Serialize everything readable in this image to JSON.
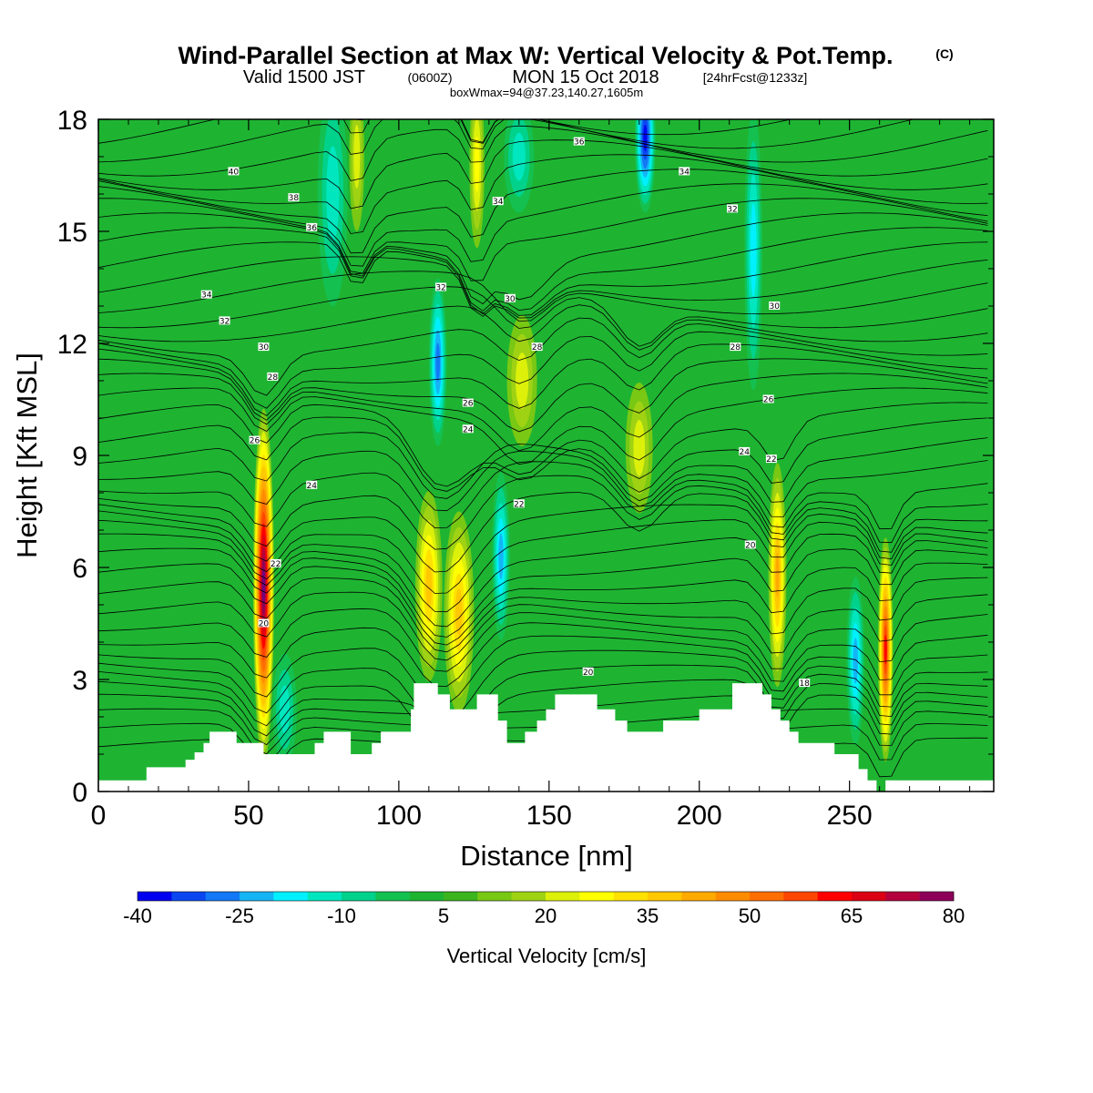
{
  "title": {
    "main": "Wind-Parallel Section at Max W: Vertical Velocity & Pot.Temp.",
    "copyright": "(C)",
    "valid_prefix": "Valid 1500 JST",
    "valid_utc": "(0600Z)",
    "valid_date": "MON 15 Oct 2018",
    "forecast": "[24hrFcst@1233z]",
    "box": "boxWmax=94@37.23,140.27,1605m"
  },
  "colors": {
    "terrain": "#ffffff",
    "contour": "#000000",
    "scale": [
      "#0000f0",
      "#0a46f0",
      "#1278f5",
      "#14b4f5",
      "#00f0ff",
      "#00e6be",
      "#00d28c",
      "#14c050",
      "#1eb432",
      "#3cb41e",
      "#78c814",
      "#a0d214",
      "#dcf00a",
      "#ffff00",
      "#ffe100",
      "#ffc800",
      "#ffaa00",
      "#ff8c00",
      "#ff6e00",
      "#ff4600",
      "#ff0000",
      "#dc0014",
      "#b4003c",
      "#8c005a",
      "#6e0082",
      "#50009b"
    ]
  },
  "chart_data": {
    "type": "heatmap",
    "xlabel": "Distance [nm]",
    "ylabel": "Height [Kft MSL]",
    "xlim": [
      0,
      298
    ],
    "ylim": [
      0,
      18
    ],
    "x_ticks": [
      "0",
      "50",
      "100",
      "150",
      "200",
      "250"
    ],
    "y_ticks": [
      "0",
      "3",
      "6",
      "9",
      "12",
      "15",
      "18"
    ],
    "colorbar": {
      "label": "Vertical Velocity [cm/s]",
      "min": -40,
      "max": 80,
      "step": 5,
      "tick_labels": [
        "-40",
        "-25",
        "-10",
        "5",
        "20",
        "35",
        "50",
        "65",
        "80"
      ]
    },
    "grid": false,
    "terrain_profile": [
      [
        0,
        0.3
      ],
      [
        16,
        0.3
      ],
      [
        16,
        0.65
      ],
      [
        29,
        0.65
      ],
      [
        29,
        0.85
      ],
      [
        32,
        0.85
      ],
      [
        32,
        1.05
      ],
      [
        35,
        1.05
      ],
      [
        35,
        1.3
      ],
      [
        37,
        1.3
      ],
      [
        37,
        1.6
      ],
      [
        46,
        1.6
      ],
      [
        46,
        1.3
      ],
      [
        55,
        1.3
      ],
      [
        55,
        1.0
      ],
      [
        72,
        1.0
      ],
      [
        72,
        1.3
      ],
      [
        75,
        1.3
      ],
      [
        75,
        1.6
      ],
      [
        84,
        1.6
      ],
      [
        84,
        1.0
      ],
      [
        91,
        1.0
      ],
      [
        91,
        1.3
      ],
      [
        94,
        1.3
      ],
      [
        94,
        1.6
      ],
      [
        104,
        1.6
      ],
      [
        104,
        2.2
      ],
      [
        105,
        2.2
      ],
      [
        105,
        2.9
      ],
      [
        113,
        2.9
      ],
      [
        113,
        2.6
      ],
      [
        117,
        2.6
      ],
      [
        117,
        2.2
      ],
      [
        126,
        2.2
      ],
      [
        126,
        2.6
      ],
      [
        133,
        2.6
      ],
      [
        133,
        1.9
      ],
      [
        136,
        1.9
      ],
      [
        136,
        1.3
      ],
      [
        142,
        1.3
      ],
      [
        142,
        1.6
      ],
      [
        146,
        1.6
      ],
      [
        146,
        1.9
      ],
      [
        149,
        1.9
      ],
      [
        149,
        2.2
      ],
      [
        152,
        2.2
      ],
      [
        152,
        2.6
      ],
      [
        166,
        2.6
      ],
      [
        166,
        2.2
      ],
      [
        172,
        2.2
      ],
      [
        172,
        1.9
      ],
      [
        176,
        1.9
      ],
      [
        176,
        1.6
      ],
      [
        188,
        1.6
      ],
      [
        188,
        1.9
      ],
      [
        200,
        1.9
      ],
      [
        200,
        2.2
      ],
      [
        211,
        2.2
      ],
      [
        211,
        2.9
      ],
      [
        221,
        2.9
      ],
      [
        221,
        2.6
      ],
      [
        224,
        2.6
      ],
      [
        224,
        2.2
      ],
      [
        227,
        2.2
      ],
      [
        227,
        1.9
      ],
      [
        230,
        1.9
      ],
      [
        230,
        1.6
      ],
      [
        233,
        1.6
      ],
      [
        233,
        1.3
      ],
      [
        245,
        1.3
      ],
      [
        245,
        1.0
      ],
      [
        253,
        1.0
      ],
      [
        253,
        0.6
      ],
      [
        256,
        0.6
      ],
      [
        256,
        0.3
      ],
      [
        259,
        0.3
      ],
      [
        259,
        0.0
      ],
      [
        262,
        0.0
      ],
      [
        262,
        0.3
      ],
      [
        298,
        0.3
      ]
    ],
    "updrafts": [
      {
        "x": 55,
        "z0": 1.0,
        "z1": 10.5,
        "peak": 80,
        "width": 3.5,
        "z_center": 5.5
      },
      {
        "x": 110,
        "z0": 2.9,
        "z1": 8.0,
        "peak": 35,
        "width": 4.5,
        "z_center": 5.5
      },
      {
        "x": 120,
        "z0": 2.6,
        "z1": 8.0,
        "peak": 38,
        "width": 5.0,
        "z_center": 4.8
      },
      {
        "x": 86,
        "z0": 14.0,
        "z1": 18,
        "peak": 24,
        "width": 2.5,
        "z_center": 17.0
      },
      {
        "x": 126,
        "z0": 13.5,
        "z1": 18,
        "peak": 26,
        "width": 2.5,
        "z_center": 16.8
      },
      {
        "x": 141,
        "z0": 9.5,
        "z1": 13.0,
        "peak": 20,
        "width": 5.0,
        "z_center": 11.0
      },
      {
        "x": 180,
        "z0": 7.5,
        "z1": 11.0,
        "peak": 24,
        "width": 4.5,
        "z_center": 9.2
      },
      {
        "x": 226,
        "z0": 2.0,
        "z1": 8.0,
        "peak": 40,
        "width": 3.0,
        "z_center": 5.8
      },
      {
        "x": 262,
        "z0": 0.5,
        "z1": 6.5,
        "peak": 62,
        "width": 2.5,
        "z_center": 3.8
      }
    ],
    "downdrafts": [
      {
        "x": 62,
        "z0": 1.0,
        "z1": 4.0,
        "peak": -15,
        "width": 4.0,
        "z_center": 2.2
      },
      {
        "x": 78,
        "z0": 12.0,
        "z1": 18,
        "peak": -15,
        "width": 5.0,
        "z_center": 16.0
      },
      {
        "x": 113,
        "z0": 9.5,
        "z1": 14.0,
        "peak": -30,
        "width": 3.0,
        "z_center": 11.5
      },
      {
        "x": 134,
        "z0": 3.0,
        "z1": 7.5,
        "peak": -25,
        "width": 3.0,
        "z_center": 6.3
      },
      {
        "x": 140,
        "z0": 15.0,
        "z1": 18,
        "peak": -15,
        "width": 5.0,
        "z_center": 17.0
      },
      {
        "x": 182,
        "z0": 14.0,
        "z1": 18,
        "peak": -40,
        "width": 3.5,
        "z_center": 17.5
      },
      {
        "x": 218,
        "z0": 10.5,
        "z1": 18,
        "peak": -20,
        "width": 3.0,
        "z_center": 14.5
      },
      {
        "x": 252,
        "z0": 1.0,
        "z1": 5.5,
        "peak": -28,
        "width": 3.0,
        "z_center": 3.5
      }
    ],
    "theta_contour_labels": [
      {
        "x": 45,
        "z": 16.6,
        "text": "40"
      },
      {
        "x": 65,
        "z": 15.9,
        "text": "38"
      },
      {
        "x": 71,
        "z": 15.1,
        "text": "36"
      },
      {
        "x": 36,
        "z": 13.3,
        "text": "34"
      },
      {
        "x": 42,
        "z": 12.6,
        "text": "32"
      },
      {
        "x": 55,
        "z": 11.9,
        "text": "30"
      },
      {
        "x": 58,
        "z": 11.1,
        "text": "28"
      },
      {
        "x": 52,
        "z": 9.4,
        "text": "26"
      },
      {
        "x": 71,
        "z": 8.2,
        "text": "24"
      },
      {
        "x": 59,
        "z": 6.1,
        "text": "22"
      },
      {
        "x": 55,
        "z": 4.5,
        "text": "20"
      },
      {
        "x": 160,
        "z": 17.4,
        "text": "36"
      },
      {
        "x": 195,
        "z": 16.6,
        "text": "34"
      },
      {
        "x": 211,
        "z": 15.6,
        "text": "32"
      },
      {
        "x": 133,
        "z": 15.8,
        "text": "34"
      },
      {
        "x": 114,
        "z": 13.5,
        "text": "32"
      },
      {
        "x": 137,
        "z": 13.2,
        "text": "30"
      },
      {
        "x": 146,
        "z": 11.9,
        "text": "28"
      },
      {
        "x": 123,
        "z": 10.4,
        "text": "26"
      },
      {
        "x": 123,
        "z": 9.7,
        "text": "24"
      },
      {
        "x": 140,
        "z": 7.7,
        "text": "22"
      },
      {
        "x": 212,
        "z": 11.9,
        "text": "28"
      },
      {
        "x": 225,
        "z": 13.0,
        "text": "30"
      },
      {
        "x": 223,
        "z": 10.5,
        "text": "26"
      },
      {
        "x": 215,
        "z": 9.1,
        "text": "24"
      },
      {
        "x": 224,
        "z": 8.9,
        "text": "22"
      },
      {
        "x": 217,
        "z": 6.6,
        "text": "20"
      },
      {
        "x": 163,
        "z": 3.2,
        "text": "20"
      },
      {
        "x": 235,
        "z": 2.9,
        "text": "18"
      }
    ]
  }
}
